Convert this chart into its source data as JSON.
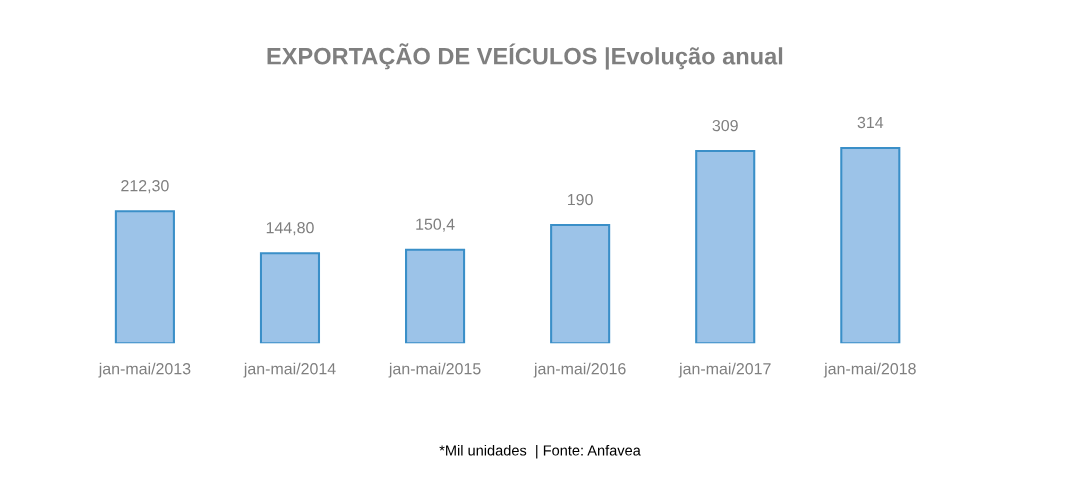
{
  "chart_data": {
    "type": "bar",
    "title": "EXPORTAÇÃO DE VEÍCULOS |Evolução anual",
    "categories": [
      "jan-mai/2013",
      "jan-mai/2014",
      "jan-mai/2015",
      "jan-mai/2016",
      "jan-mai/2017",
      "jan-mai/2018"
    ],
    "values": [
      212.3,
      144.8,
      150.4,
      190,
      309,
      314
    ],
    "value_labels": [
      "212,30",
      "144,80",
      "150,4",
      "190",
      "309",
      "314"
    ],
    "color": "#9cc3e8",
    "tick_labels": "x",
    "annotations": [
      "*Mil unidades  | Fonte: Anfavea"
    ]
  }
}
